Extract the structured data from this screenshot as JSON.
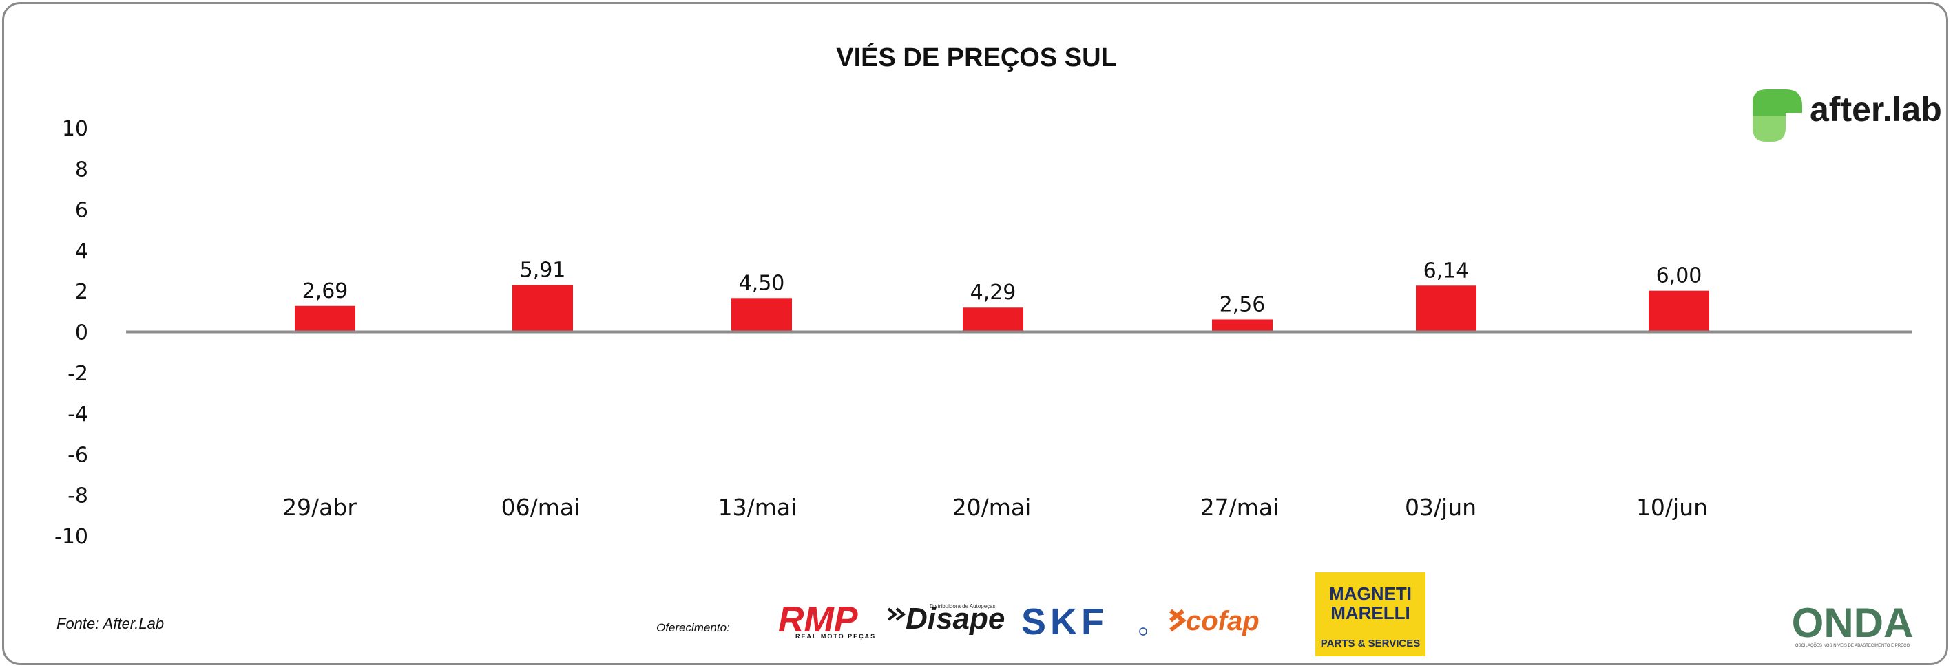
{
  "chart_data": {
    "type": "bar",
    "title": "VIÉS DE PREÇOS SUL",
    "categories": [
      "29/abr",
      "06/mai",
      "13/mai",
      "20/mai",
      "27/mai",
      "03/jun",
      "10/jun"
    ],
    "values": [
      2.69,
      5.91,
      4.5,
      4.29,
      2.56,
      6.14,
      6.0
    ],
    "value_labels": [
      "2,69",
      "5,91",
      "4,50",
      "4,29",
      "2,56",
      "6,14",
      "6,00"
    ],
    "yticks": [
      10,
      8,
      6,
      4,
      2,
      0,
      -2,
      -4,
      -6,
      -8,
      -10
    ],
    "ylim": [
      -10,
      10
    ],
    "bar_color": "#ed1c24",
    "grid": false,
    "legend": "none"
  },
  "footer": {
    "source": "Fonte: After.Lab",
    "sponsor_label": "Oferecimento:"
  },
  "brand": {
    "name": "after.lab",
    "accent": "#5bbd45"
  },
  "sponsors": {
    "rmp": {
      "name": "RMP",
      "sub": "REAL MOTO PEÇAS"
    },
    "disape": {
      "name": "Disape",
      "sub": "Distribuidora de Autopeças"
    },
    "skf": {
      "name": "SKF"
    },
    "cofap": {
      "name": "cofap"
    },
    "magneti": {
      "line1": "MAGNETI",
      "line2": "MARELLI",
      "sub": "PARTS & SERVICES",
      "bg": "#f7d417"
    },
    "onda": {
      "name": "ONDA",
      "sub": "OSCILAÇÕES NOS NÍVEIS DE ABASTECIMENTO E PREÇO"
    }
  }
}
